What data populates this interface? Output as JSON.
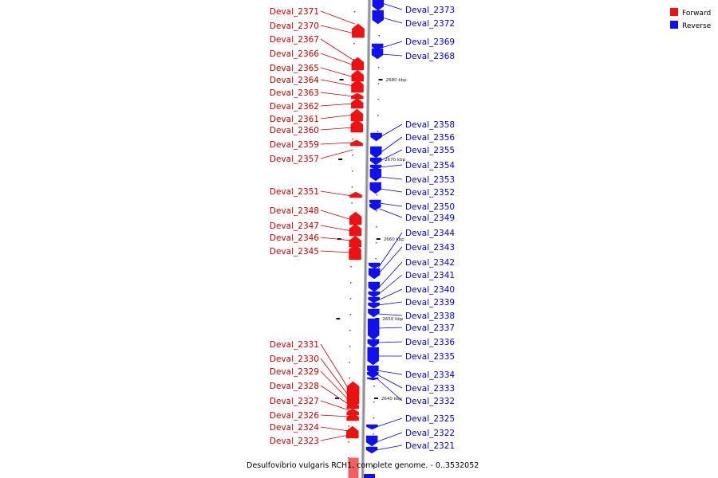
{
  "caption": "Desulfovibrio vulgaris RCH1, complete genome. - 0..3532052",
  "legend": [
    {
      "label": "Forward",
      "color": "#ee1111"
    },
    {
      "label": "Reverse",
      "color": "#1111ee"
    }
  ],
  "colors": {
    "forward_fill": "#ee1111",
    "forward_label": "#cc0000",
    "reverse_fill": "#1111ee",
    "reverse_label": "#0000cc",
    "backbone": "#888888"
  },
  "scale_labels": [
    "2680 kbp",
    "2670 kbp",
    "2660 kbp",
    "2650 kbp",
    "2640 kbp"
  ],
  "forward_genes": [
    "Deval_2371",
    "Deval_2370",
    "Deval_2367",
    "Deval_2366",
    "Deval_2365",
    "Deval_2364",
    "Deval_2363",
    "Deval_2362",
    "Deval_2361",
    "Deval_2360",
    "Deval_2359",
    "Deval_2357",
    "Deval_2351",
    "Deval_2348",
    "Deval_2347",
    "Deval_2346",
    "Deval_2345",
    "Deval_2331",
    "Deval_2330",
    "Deval_2329",
    "Deval_2328",
    "Deval_2327",
    "Deval_2326",
    "Deval_2324",
    "Deval_2323"
  ],
  "reverse_genes": [
    "Deval_2373",
    "Deval_2372",
    "Deval_2369",
    "Deval_2368",
    "Deval_2358",
    "Deval_2356",
    "Deval_2355",
    "Deval_2354",
    "Deval_2353",
    "Deval_2352",
    "Deval_2350",
    "Deval_2349",
    "Deval_2344",
    "Deval_2343",
    "Deval_2342",
    "Deval_2341",
    "Deval_2340",
    "Deval_2339",
    "Deval_2338",
    "Deval_2337",
    "Deval_2336",
    "Deval_2335",
    "Deval_2334",
    "Deval_2333",
    "Deval_2332",
    "Deval_2325",
    "Deval_2322",
    "Deval_2321"
  ]
}
